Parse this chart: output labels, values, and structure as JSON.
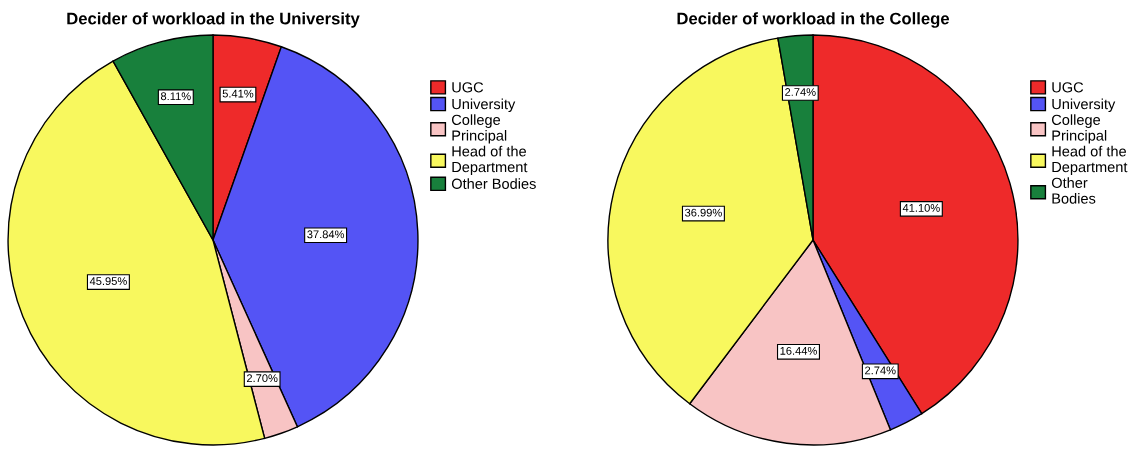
{
  "chart_data": [
    {
      "type": "pie",
      "title": "Decider of workload in the University",
      "categories": [
        "UGC",
        "University",
        "College\nPrincipal",
        "Head of the\nDepartment",
        "Other Bodies"
      ],
      "values": [
        5.41,
        37.84,
        2.7,
        45.95,
        8.11
      ],
      "value_labels": [
        "5.41%",
        "37.84%",
        "2.70%",
        "45.95%",
        "8.11%"
      ],
      "colors": [
        "#ee2a2a",
        "#5454f5",
        "#f8c4c4",
        "#f8f85e",
        "#18803c"
      ],
      "legend": "right"
    },
    {
      "type": "pie",
      "title": "Decider of workload in the College",
      "categories": [
        "UGC",
        "University",
        "College\nPrincipal",
        "Head of the\nDepartment",
        "Other\nBodies"
      ],
      "values": [
        41.1,
        2.74,
        16.44,
        36.99,
        2.74
      ],
      "value_labels": [
        "41.10%",
        "2.74%",
        "16.44%",
        "36.99%",
        "2.74%"
      ],
      "colors": [
        "#ee2a2a",
        "#5454f5",
        "#f8c4c4",
        "#f8f85e",
        "#18803c"
      ],
      "legend": "right"
    }
  ]
}
